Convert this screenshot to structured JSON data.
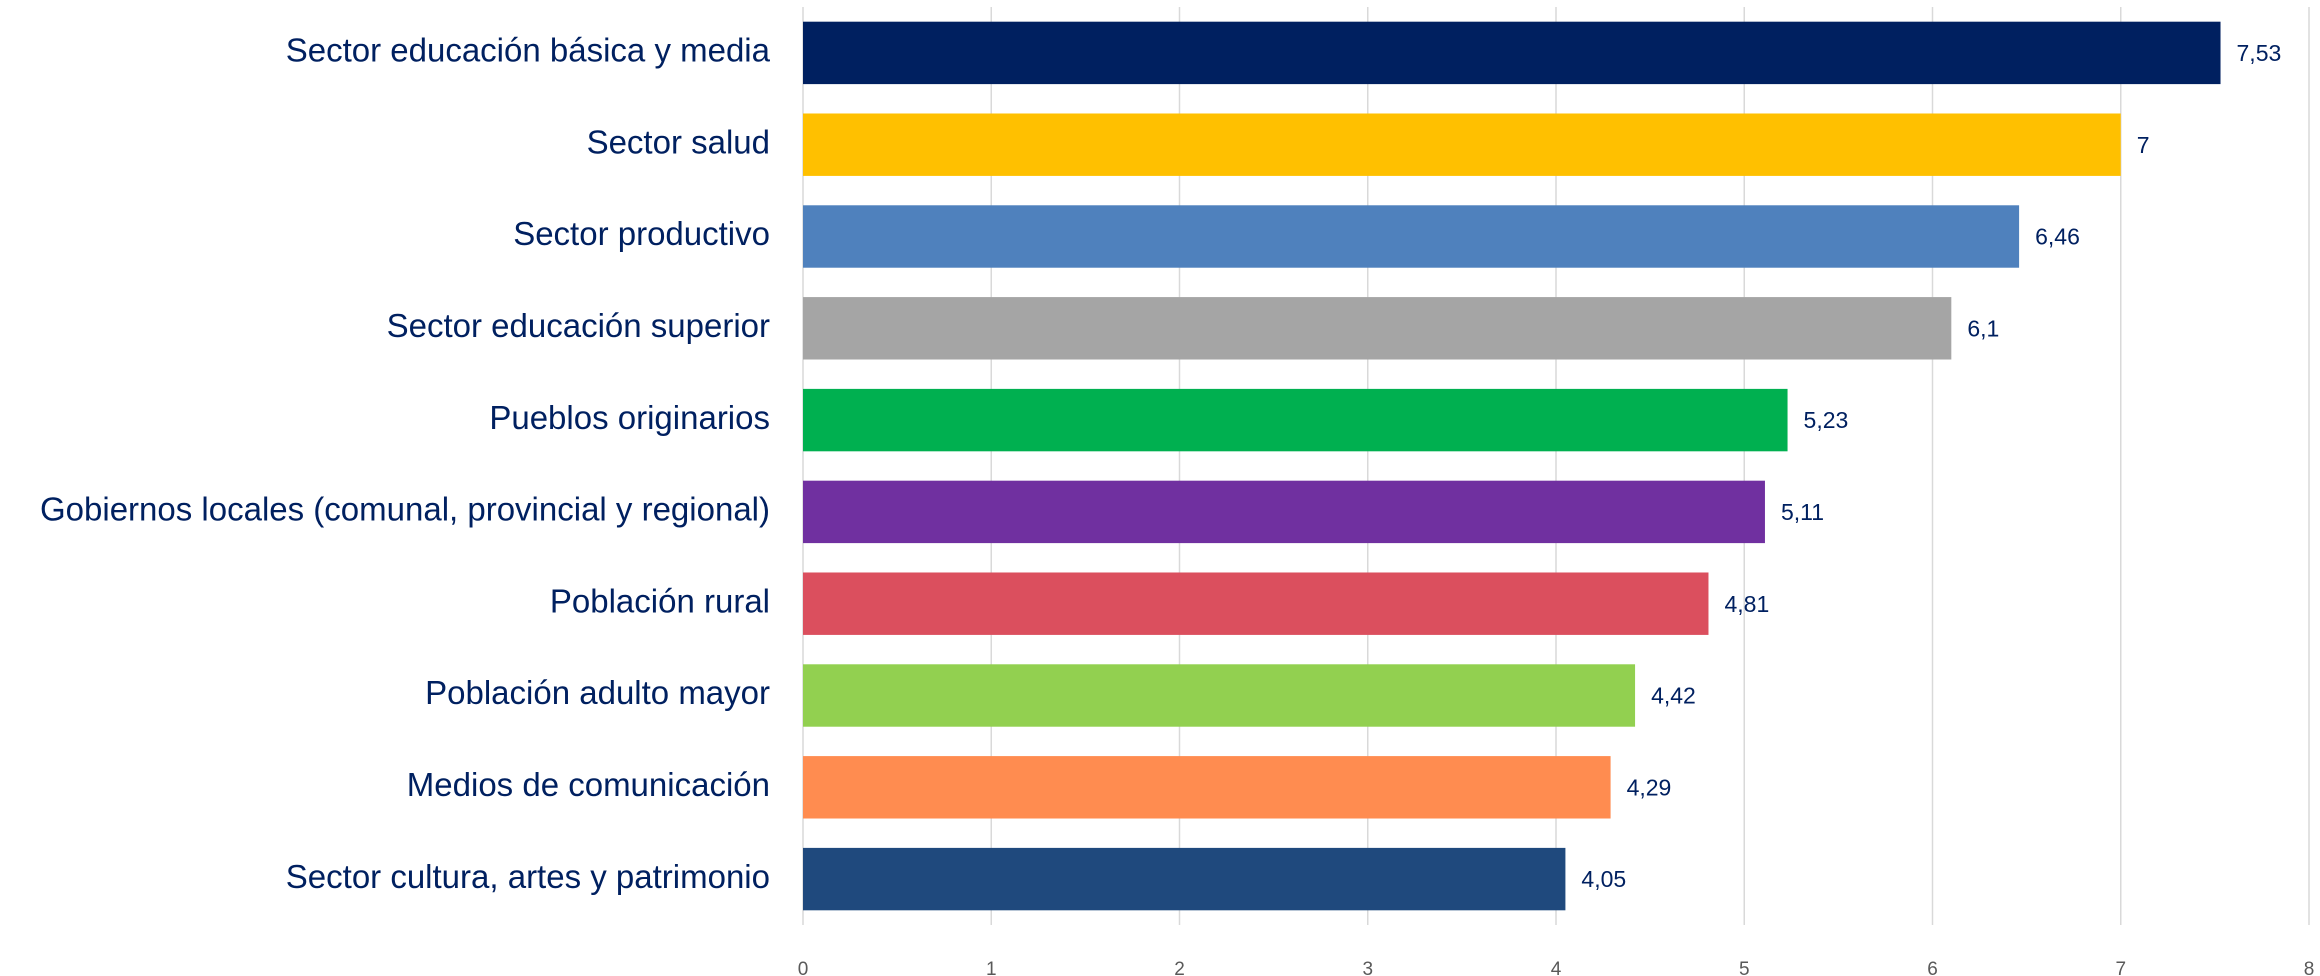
{
  "chart_data": {
    "type": "bar",
    "orientation": "horizontal",
    "categories": [
      "Sector educación básica y media",
      "Sector salud",
      "Sector productivo",
      "Sector educación superior",
      "Pueblos originarios",
      "Gobiernos locales (comunal, provincial y regional)",
      "Población rural",
      "Población adulto mayor",
      "Medios de comunicación",
      "Sector cultura, artes y patrimonio"
    ],
    "values": [
      7.53,
      7,
      6.46,
      6.1,
      5.23,
      5.11,
      4.81,
      4.42,
      4.29,
      4.05
    ],
    "value_labels": [
      "7,53",
      "7",
      "6,46",
      "6,1",
      "5,23",
      "5,11",
      "4,81",
      "4,42",
      "4,29",
      "4,05"
    ],
    "colors": [
      "#002060",
      "#ffc000",
      "#4f81bd",
      "#a5a5a5",
      "#00b050",
      "#7030a0",
      "#db4f5e",
      "#92d050",
      "#ff8c50",
      "#1f497d"
    ],
    "xlim": [
      0,
      8
    ],
    "xticks": [
      0,
      1,
      2,
      3,
      4,
      5,
      6,
      7,
      8
    ],
    "grid": true
  }
}
